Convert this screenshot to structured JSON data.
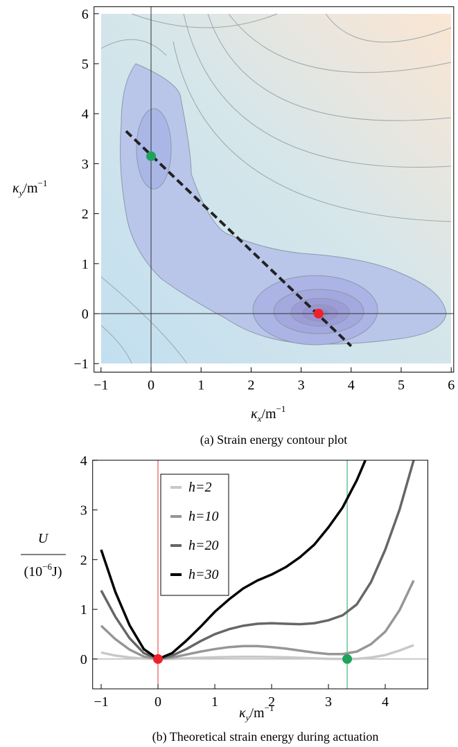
{
  "chart_data": [
    {
      "type": "contour",
      "caption": "(a) Strain energy contour plot",
      "xlabel": [
        "κ",
        "x",
        "/m",
        "−1"
      ],
      "ylabel": [
        "κ",
        "y",
        "/m",
        "−1"
      ],
      "xlim": [
        -1.14,
        6.05
      ],
      "ylim": [
        -1.17,
        6.14
      ],
      "xticks": [
        {
          "value": -1,
          "label": "−1"
        },
        0,
        1,
        2,
        3,
        4,
        5,
        6
      ],
      "yticks": [
        {
          "value": -1,
          "label": "−1"
        },
        0,
        1,
        2,
        3,
        4,
        5,
        6
      ],
      "reference_lines": {
        "x": [
          0
        ],
        "y": [
          0
        ]
      },
      "dashed_line": {
        "x": [
          -0.5,
          4.0
        ],
        "y": [
          3.65,
          -0.65
        ]
      },
      "points": [
        {
          "x": 0,
          "y": 3.15,
          "color": "#1fa35c"
        },
        {
          "x": 3.35,
          "y": 0,
          "color": "#f0202a"
        }
      ]
    },
    {
      "type": "line",
      "caption": "(b) Theoretical strain energy during actuation",
      "xlabel": [
        "κ",
        "y",
        "/m",
        "−1"
      ],
      "ylabel": {
        "numerator": "U",
        "denominator": [
          "(10",
          "−6",
          "J)"
        ]
      },
      "xlim": [
        -1.15,
        4.75
      ],
      "ylim": [
        -0.6,
        4
      ],
      "xticks": [
        {
          "value": -1,
          "label": "−1"
        },
        0,
        1,
        2,
        3,
        4
      ],
      "yticks": [
        0,
        1,
        2,
        3,
        4
      ],
      "x": [
        -1,
        -0.75,
        -0.5,
        -0.25,
        0,
        0.25,
        0.5,
        0.75,
        1,
        1.25,
        1.5,
        1.75,
        2,
        2.25,
        2.5,
        2.75,
        3,
        3.25,
        3.5,
        3.75,
        4,
        4.25,
        4.5
      ],
      "series": [
        {
          "name": "h=2",
          "color": "#c8c8c8",
          "values": [
            0.13,
            0.07,
            0.03,
            0.01,
            0,
            0.005,
            0.015,
            0.025,
            0.035,
            0.04,
            0.045,
            0.045,
            0.04,
            0.035,
            0.025,
            0.015,
            0.005,
            0,
            0.005,
            0.03,
            0.08,
            0.17,
            0.28
          ]
        },
        {
          "name": "h=10",
          "color": "#969696",
          "values": [
            0.67,
            0.4,
            0.19,
            0.05,
            0,
            0.03,
            0.09,
            0.15,
            0.2,
            0.24,
            0.26,
            0.26,
            0.24,
            0.21,
            0.17,
            0.13,
            0.1,
            0.1,
            0.15,
            0.3,
            0.55,
            0.98,
            1.58
          ]
        },
        {
          "name": "h=20",
          "color": "#666666",
          "values": [
            1.38,
            0.85,
            0.42,
            0.12,
            0,
            0.07,
            0.2,
            0.36,
            0.5,
            0.6,
            0.67,
            0.71,
            0.72,
            0.71,
            0.7,
            0.72,
            0.78,
            0.88,
            1.1,
            1.55,
            2.2,
            3.0,
            4.0
          ]
        },
        {
          "name": "h=30",
          "color": "#000000",
          "x": [
            -1,
            -0.75,
            -0.5,
            -0.25,
            0,
            0.25,
            0.5,
            0.75,
            1,
            1.25,
            1.5,
            1.75,
            2,
            2.25,
            2.5,
            2.75,
            3,
            3.25,
            3.5,
            3.65
          ],
          "values": [
            2.2,
            1.35,
            0.68,
            0.2,
            0,
            0.12,
            0.37,
            0.65,
            0.95,
            1.2,
            1.42,
            1.58,
            1.7,
            1.85,
            2.05,
            2.3,
            2.65,
            3.05,
            3.6,
            4.0
          ]
        }
      ],
      "hline": 0,
      "vlines": [
        {
          "x": 0,
          "color": "#e03030"
        },
        {
          "x": 3.33,
          "color": "#1fa35c"
        }
      ],
      "points": [
        {
          "x": 0,
          "y": 0,
          "color": "#f0202a"
        },
        {
          "x": 3.33,
          "y": 0,
          "color": "#1fa35c"
        }
      ]
    }
  ]
}
